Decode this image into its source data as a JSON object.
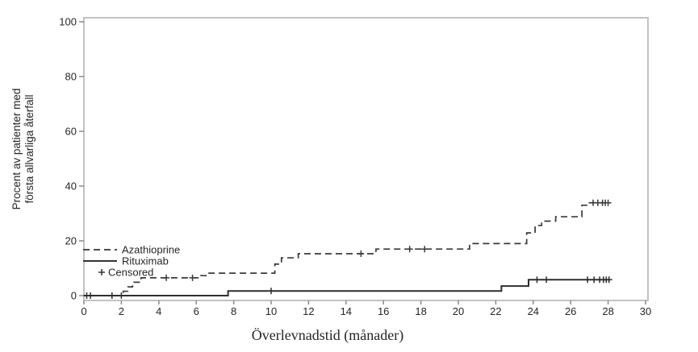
{
  "figure": {
    "background": "#ffffff"
  },
  "chart_data": {
    "type": "line",
    "subtype": "kaplan-meier-step-curve",
    "title": "",
    "xlabel": "Överlevnadstid (månader)",
    "ylabel": "Procent av patienter med första allvarliga återfall",
    "ylabel_lines": [
      "Procent av patienter  med",
      "första allvarliga återfall"
    ],
    "xlim": [
      0,
      30
    ],
    "ylim": [
      0,
      100
    ],
    "xticks": [
      0,
      2,
      4,
      6,
      8,
      10,
      12,
      14,
      16,
      18,
      20,
      22,
      24,
      26,
      28,
      30
    ],
    "yticks": [
      0,
      20,
      40,
      60,
      80,
      100
    ],
    "grid": false,
    "legend_position": "inside-lower-left",
    "series": [
      {
        "name": "Azathioprine",
        "line_style": "dashed",
        "color": "#3a3a3a",
        "steps": [
          [
            0,
            0
          ],
          [
            2.1,
            1.6
          ],
          [
            2.35,
            3.2
          ],
          [
            2.6,
            4.9
          ],
          [
            3.05,
            6.5
          ],
          [
            6.1,
            7.3
          ],
          [
            6.6,
            8.2
          ],
          [
            10.2,
            11.5
          ],
          [
            10.55,
            13.8
          ],
          [
            11.45,
            15.3
          ],
          [
            15.6,
            17.0
          ],
          [
            20.6,
            19.0
          ],
          [
            23.65,
            22.9
          ],
          [
            24.1,
            25.6
          ],
          [
            24.45,
            27.2
          ],
          [
            25.2,
            28.8
          ],
          [
            26.6,
            33.0
          ],
          [
            27.0,
            33.9
          ]
        ],
        "end_x": 28.1,
        "censored": [
          [
            4.4,
            6.5
          ],
          [
            5.8,
            6.5
          ],
          [
            14.8,
            15.3
          ],
          [
            17.4,
            17.0
          ],
          [
            18.2,
            17.0
          ],
          [
            27.2,
            33.9
          ],
          [
            27.45,
            33.9
          ],
          [
            27.7,
            33.9
          ],
          [
            27.85,
            33.9
          ],
          [
            28.0,
            33.9
          ]
        ]
      },
      {
        "name": "Rituximab",
        "line_style": "solid",
        "color": "#2e2e2e",
        "steps": [
          [
            0,
            0
          ],
          [
            7.7,
            1.7
          ],
          [
            22.3,
            3.5
          ],
          [
            23.75,
            5.8
          ]
        ],
        "end_x": 28.1,
        "censored": [
          [
            0.15,
            0
          ],
          [
            0.35,
            0
          ],
          [
            1.5,
            0
          ],
          [
            2.0,
            0
          ],
          [
            10.0,
            1.7
          ],
          [
            24.2,
            5.8
          ],
          [
            24.7,
            5.8
          ],
          [
            26.9,
            5.8
          ],
          [
            27.25,
            5.8
          ],
          [
            27.55,
            5.8
          ],
          [
            27.75,
            5.8
          ],
          [
            27.9,
            5.8
          ],
          [
            28.05,
            5.8
          ]
        ]
      }
    ],
    "legend": {
      "items": [
        {
          "label": "Azathioprine",
          "marker": "dashed-line"
        },
        {
          "label": "Rituximab",
          "marker": "solid-line"
        },
        {
          "label": "Censored",
          "marker": "plus"
        }
      ]
    }
  },
  "colors": {
    "plot_border": "#c2c2c2",
    "tick": "#8a8a8a",
    "text": "#262626",
    "curve": "#333333"
  }
}
